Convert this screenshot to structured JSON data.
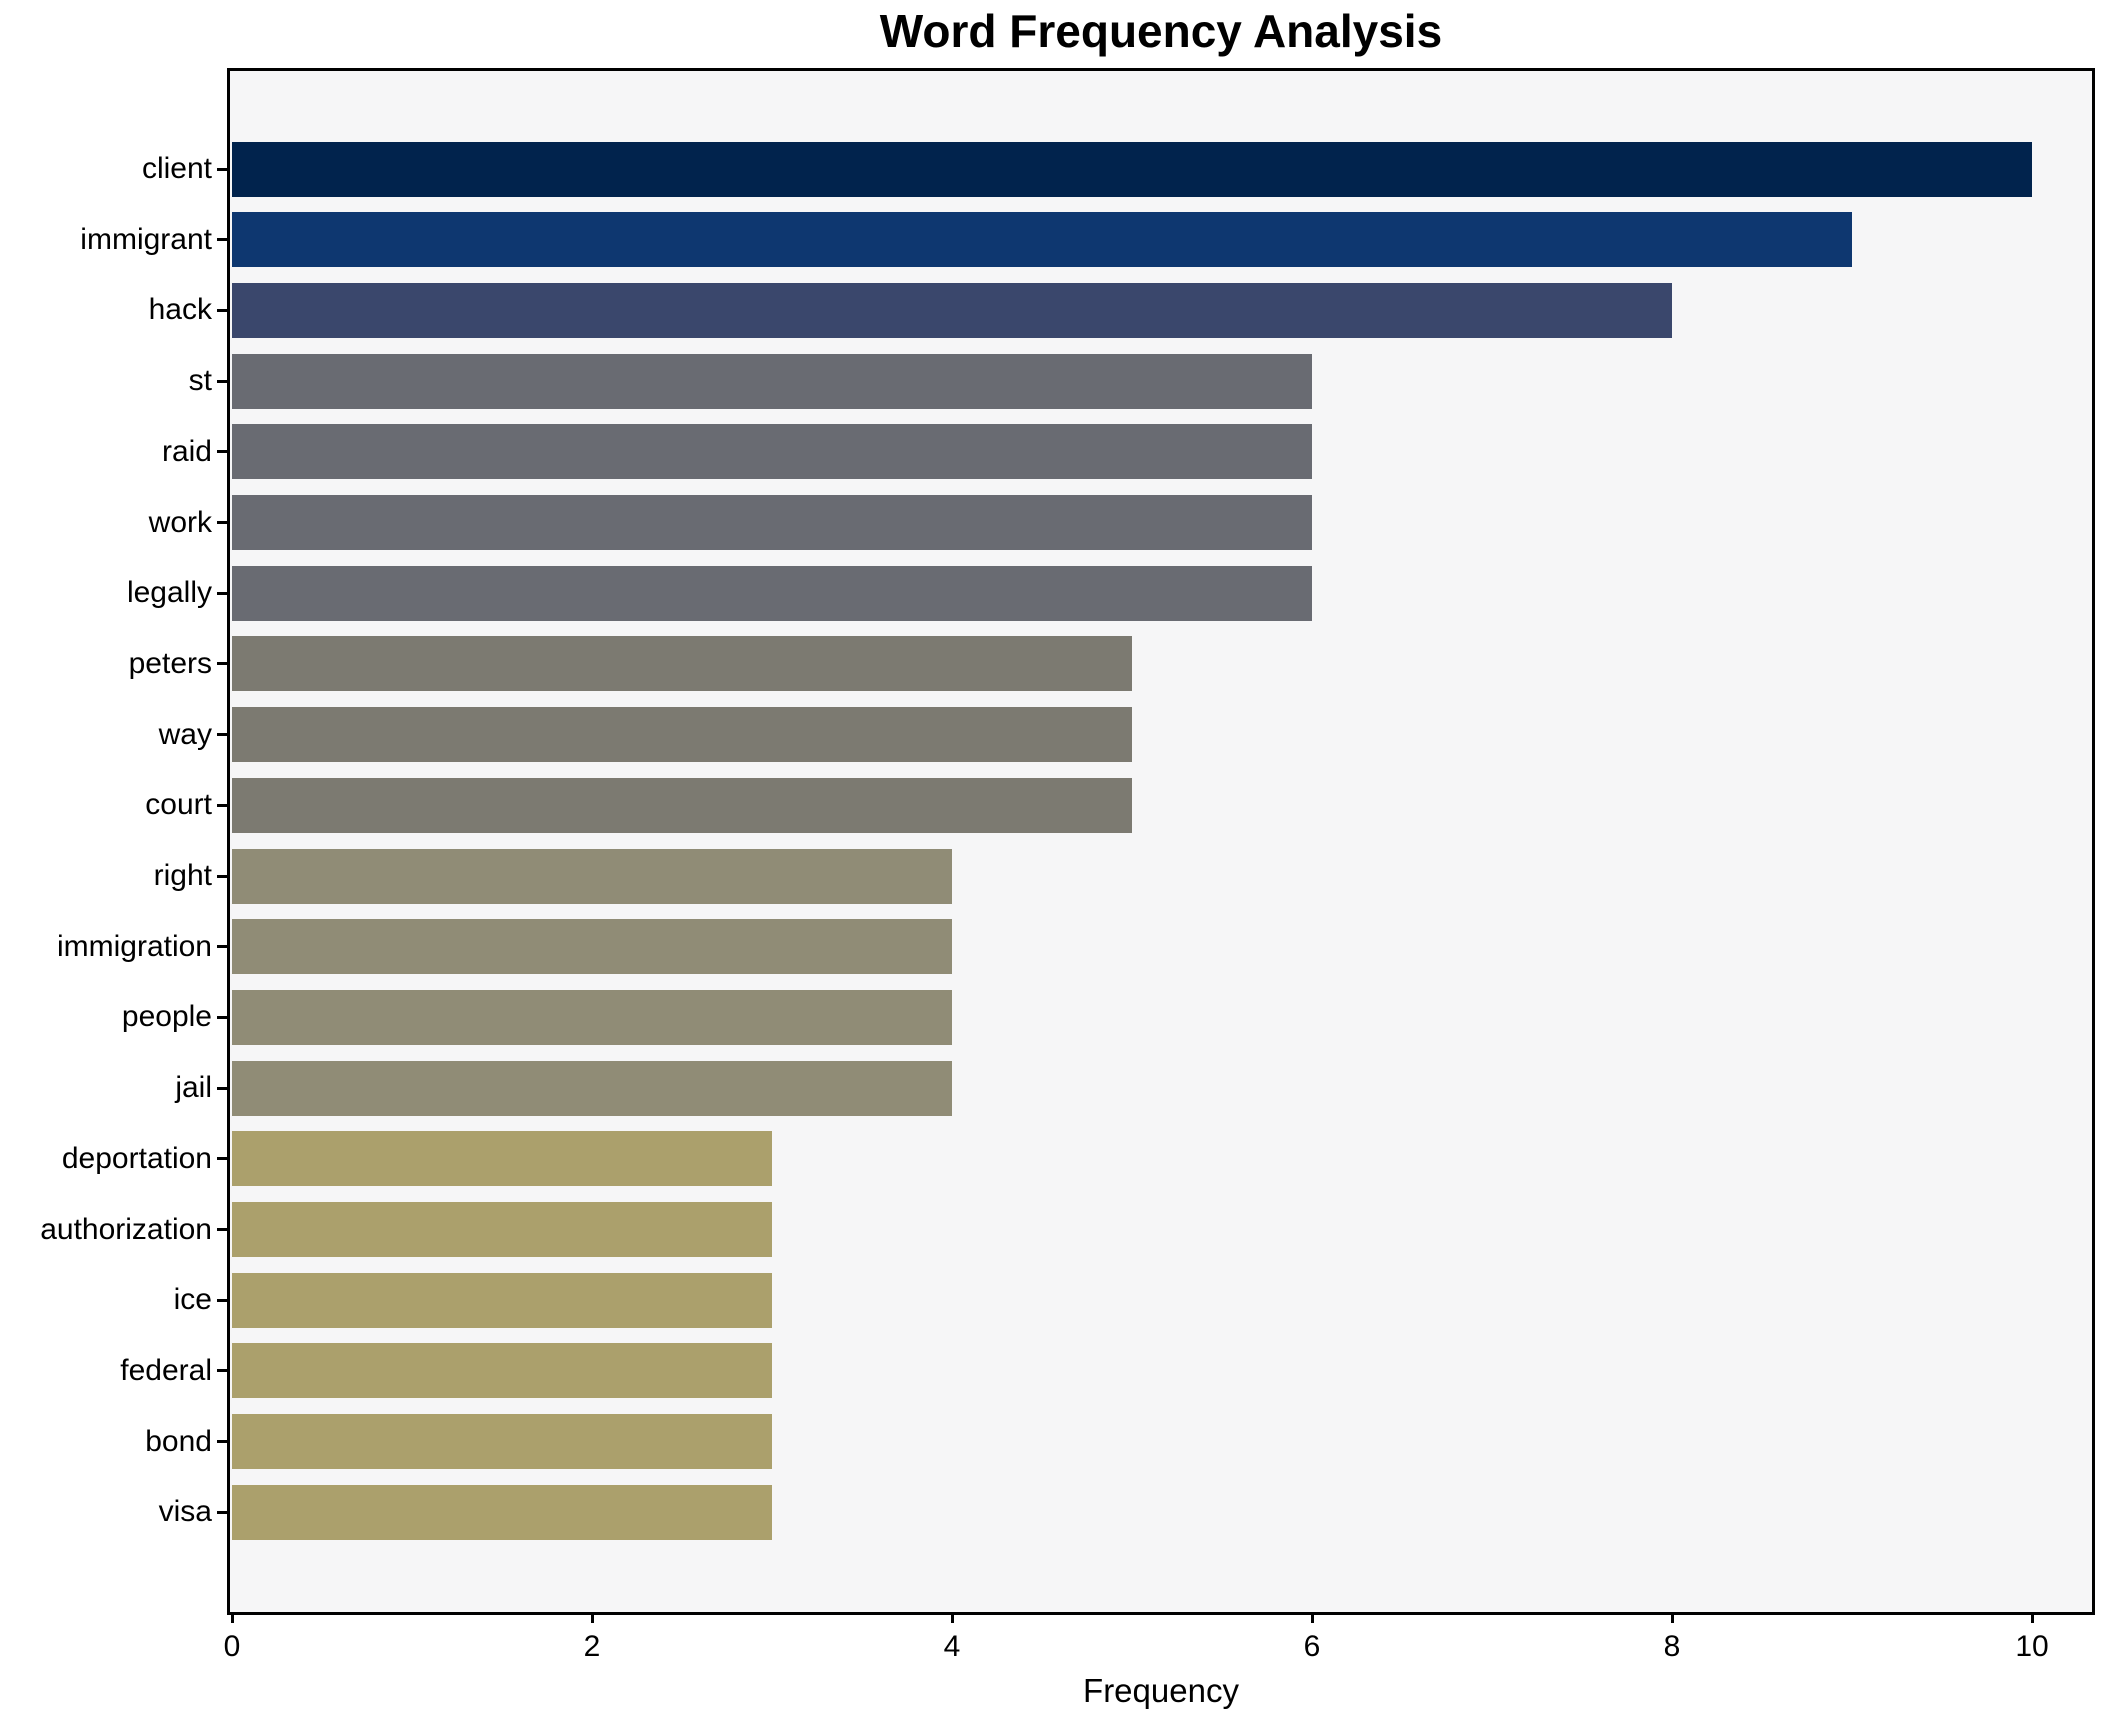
{
  "chart_data": {
    "type": "bar",
    "orientation": "horizontal",
    "title": "Word Frequency Analysis",
    "xlabel": "Frequency",
    "ylabel": "",
    "categories": [
      "client",
      "immigrant",
      "hack",
      "st",
      "raid",
      "work",
      "legally",
      "peters",
      "way",
      "court",
      "right",
      "immigration",
      "people",
      "jail",
      "deportation",
      "authorization",
      "ice",
      "federal",
      "bond",
      "visa"
    ],
    "values": [
      10,
      9,
      8,
      6,
      6,
      6,
      6,
      5,
      5,
      5,
      4,
      4,
      4,
      4,
      3,
      3,
      3,
      3,
      3,
      3
    ],
    "bar_colors": [
      "#01234d",
      "#0e3770",
      "#3a476c",
      "#696b72",
      "#696b72",
      "#696b72",
      "#696b72",
      "#7c7a71",
      "#7c7a71",
      "#7c7a71",
      "#908c76",
      "#908c76",
      "#908c76",
      "#908c76",
      "#aba06c",
      "#aba06c",
      "#aba06c",
      "#aba06c",
      "#aba06c",
      "#aba06c"
    ],
    "xticks": [
      0,
      2,
      4,
      6,
      8,
      10
    ],
    "xlim": [
      0,
      10.34
    ],
    "grid": false,
    "legend_position": "none",
    "plot_background": "#f6f6f7",
    "figure_background": "#ffffff",
    "spine_color": "#000000",
    "text_color": "#000000"
  }
}
